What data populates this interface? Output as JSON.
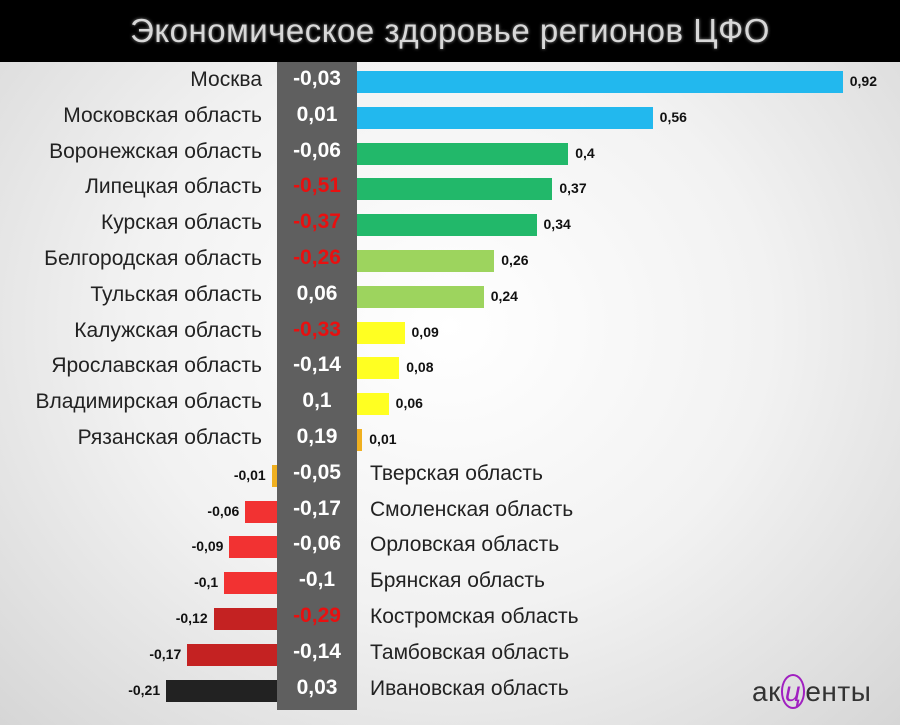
{
  "chart_data": {
    "type": "bar",
    "title": "Экономическое здоровье регионов ЦФО",
    "categories": [
      "Москва",
      "Московская область",
      "Воронежская область",
      "Липецкая область",
      "Курская область",
      "Белгородская область",
      "Тульская область",
      "Калужская область",
      "Ярославская область",
      "Владимирская область",
      "Рязанская область",
      "Тверская область",
      "Смоленская область",
      "Орловская область",
      "Брянская область",
      "Костромская область",
      "Тамбовская область",
      "Ивановская область"
    ],
    "values": [
      0.92,
      0.56,
      0.4,
      0.37,
      0.34,
      0.26,
      0.24,
      0.09,
      0.08,
      0.06,
      0.01,
      -0.01,
      -0.06,
      -0.09,
      -0.1,
      -0.12,
      -0.17,
      -0.21
    ],
    "value_labels": [
      "0,92",
      "0,56",
      "0,4",
      "0,37",
      "0,34",
      "0,26",
      "0,24",
      "0,09",
      "0,08",
      "0,06",
      "0,01",
      "-0,01",
      "-0,06",
      "-0,09",
      "-0,1",
      "-0,12",
      "-0,17",
      "-0,21"
    ],
    "column_values": [
      -0.03,
      0.01,
      -0.06,
      -0.51,
      -0.37,
      -0.26,
      0.06,
      -0.33,
      -0.14,
      0.1,
      0.19,
      -0.05,
      -0.17,
      -0.06,
      -0.1,
      -0.29,
      -0.14,
      0.03
    ],
    "column_labels": [
      "-0,03",
      "0,01",
      "-0,06",
      "-0,51",
      "-0,37",
      "-0,26",
      "0,06",
      "-0,33",
      "-0,14",
      "0,1",
      "0,19",
      "-0,05",
      "-0,17",
      "-0,06",
      "-0,1",
      "-0,29",
      "-0,14",
      "0,03"
    ],
    "column_highlight": [
      false,
      false,
      false,
      true,
      true,
      true,
      false,
      true,
      false,
      false,
      false,
      false,
      false,
      false,
      false,
      true,
      false,
      false
    ],
    "bar_colors": [
      "#22b8ee",
      "#22b8ee",
      "#22b86a",
      "#22b86a",
      "#22b86a",
      "#9dd45e",
      "#9dd45e",
      "#ffff22",
      "#ffff22",
      "#ffff22",
      "#f0b020",
      "#f0b020",
      "#f23232",
      "#f23232",
      "#f23232",
      "#c42222",
      "#c42222",
      "#222222"
    ],
    "highlight_color": "#e81010"
  },
  "logo": {
    "text_before": "ак",
    "text_mid": "ц",
    "text_after": "енты"
  }
}
